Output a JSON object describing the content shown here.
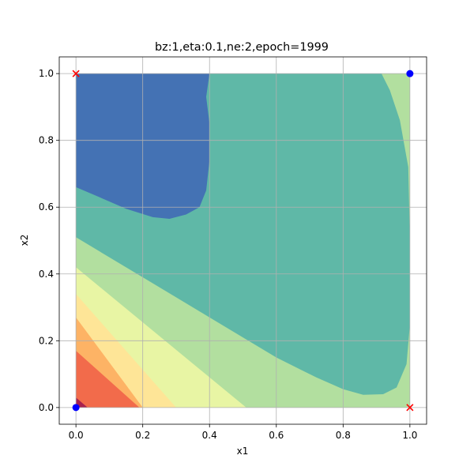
{
  "chart_data": {
    "type": "contourf",
    "title": "bz:1,eta:0.1,ne:2,epoch=1999",
    "xlabel": "x1",
    "ylabel": "x2",
    "xlim": [
      -0.05,
      1.05
    ],
    "ylim": [
      -0.05,
      1.05
    ],
    "x_ticks": [
      "0.0",
      "0.2",
      "0.4",
      "0.6",
      "0.8",
      "1.0"
    ],
    "y_ticks": [
      "0.0",
      "0.2",
      "0.4",
      "0.6",
      "0.8",
      "1.0"
    ],
    "grid": true,
    "colormap": [
      "#9e0142",
      "#f46d43",
      "#fdae61",
      "#fee08b",
      "#e6f598",
      "#abdda4",
      "#66c2a5",
      "#3f6fb5"
    ],
    "regions": [
      {
        "name": "level-0",
        "color": "#b2df9f",
        "points": [
          [
            0,
            0
          ],
          [
            1,
            0
          ],
          [
            1,
            1
          ],
          [
            0,
            1
          ]
        ]
      },
      {
        "name": "level-1",
        "color": "#e8f5a4",
        "points": [
          [
            0,
            0
          ],
          [
            0.51,
            0
          ],
          [
            0,
            0.42
          ]
        ]
      },
      {
        "name": "level-2",
        "color": "#fee597",
        "points": [
          [
            0,
            0
          ],
          [
            0.3,
            0
          ],
          [
            0,
            0.34
          ]
        ]
      },
      {
        "name": "level-3",
        "color": "#fdb365",
        "points": [
          [
            0,
            0
          ],
          [
            0.2,
            0
          ],
          [
            0,
            0.27
          ]
        ]
      },
      {
        "name": "level-4",
        "color": "#f26b4b",
        "points": [
          [
            0,
            0
          ],
          [
            0.19,
            0
          ],
          [
            0,
            0.17
          ]
        ]
      },
      {
        "name": "level-5",
        "color": "#a8214f",
        "points": [
          [
            0,
            0
          ],
          [
            0.035,
            0
          ],
          [
            0,
            0.03
          ]
        ]
      },
      {
        "name": "level-6",
        "color": "#5fb8a7",
        "points": [
          [
            0,
            1
          ],
          [
            0,
            0.51
          ],
          [
            0.2,
            0.39
          ],
          [
            0.4,
            0.27
          ],
          [
            0.6,
            0.15
          ],
          [
            0.72,
            0.09
          ],
          [
            0.8,
            0.055
          ],
          [
            0.86,
            0.038
          ],
          [
            0.92,
            0.04
          ],
          [
            0.96,
            0.06
          ],
          [
            0.99,
            0.13
          ],
          [
            1,
            0.25
          ],
          [
            1,
            0.5
          ],
          [
            0.995,
            0.72
          ],
          [
            0.97,
            0.86
          ],
          [
            0.94,
            0.95
          ],
          [
            0.915,
            1
          ]
        ]
      },
      {
        "name": "level-7",
        "color": "#4472b4",
        "points": [
          [
            0,
            1
          ],
          [
            0,
            0.66
          ],
          [
            0.07,
            0.63
          ],
          [
            0.15,
            0.595
          ],
          [
            0.23,
            0.57
          ],
          [
            0.28,
            0.565
          ],
          [
            0.33,
            0.578
          ],
          [
            0.37,
            0.6
          ],
          [
            0.39,
            0.65
          ],
          [
            0.4,
            0.74
          ],
          [
            0.4,
            0.85
          ],
          [
            0.39,
            0.93
          ],
          [
            0.4,
            1
          ]
        ]
      }
    ],
    "points": [
      {
        "x": 0,
        "y": 0,
        "marker": "circle",
        "color": "#0000ff"
      },
      {
        "x": 1,
        "y": 1,
        "marker": "circle",
        "color": "#0000ff"
      },
      {
        "x": 0,
        "y": 1,
        "marker": "x",
        "color": "#ff0000"
      },
      {
        "x": 1,
        "y": 0,
        "marker": "x",
        "color": "#ff0000"
      }
    ]
  }
}
